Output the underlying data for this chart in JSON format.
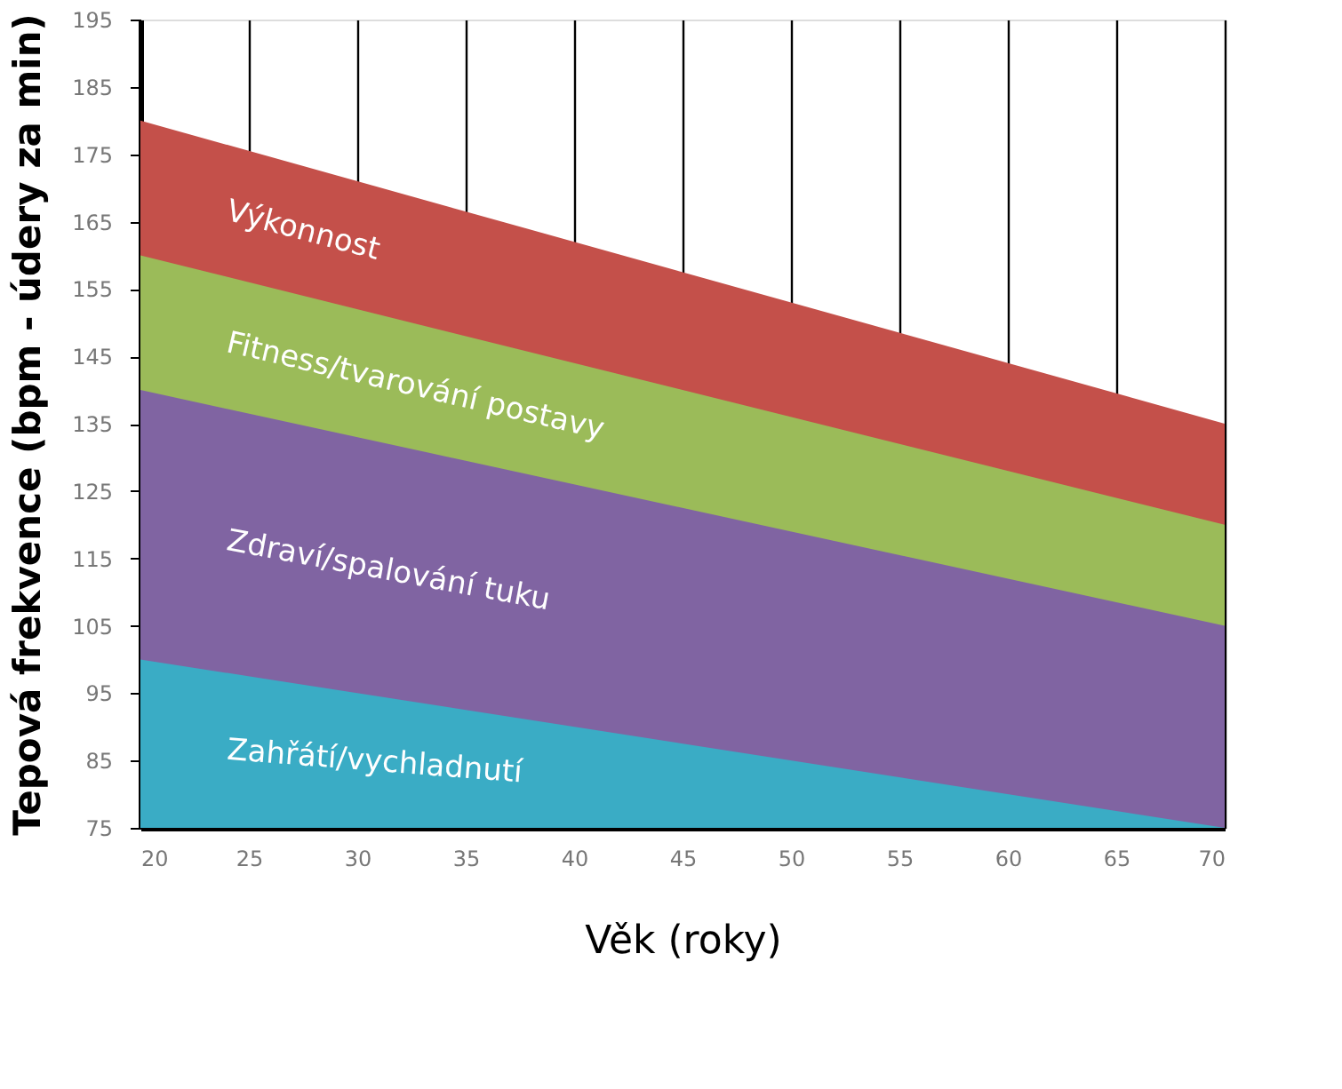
{
  "chart_data": {
    "type": "area",
    "xlabel": "Věk (roky)",
    "ylabel": "Tepová frekvence (bpm - údery za min)",
    "x": [
      20,
      70
    ],
    "series": [
      {
        "name": "Zahřátí/vychladnutí",
        "color": "#3aacc5",
        "values": [
          100,
          75
        ]
      },
      {
        "name": "Zdraví/spalování tuku",
        "color": "#8064a2",
        "values": [
          140,
          105
        ]
      },
      {
        "name": "Fitness/tvarování postavy",
        "color": "#9bbb59",
        "values": [
          160,
          120
        ]
      },
      {
        "name": "Výkonnost",
        "color": "#c4504a",
        "values": [
          180,
          135
        ]
      }
    ],
    "xlim": [
      20,
      70
    ],
    "xticks": [
      20,
      25,
      30,
      35,
      40,
      45,
      50,
      55,
      60,
      65,
      70
    ],
    "ylim": [
      75,
      195
    ],
    "yticks": [
      75,
      85,
      95,
      105,
      115,
      125,
      135,
      145,
      155,
      165,
      175,
      185,
      195
    ],
    "grid": "x",
    "legend": false
  }
}
